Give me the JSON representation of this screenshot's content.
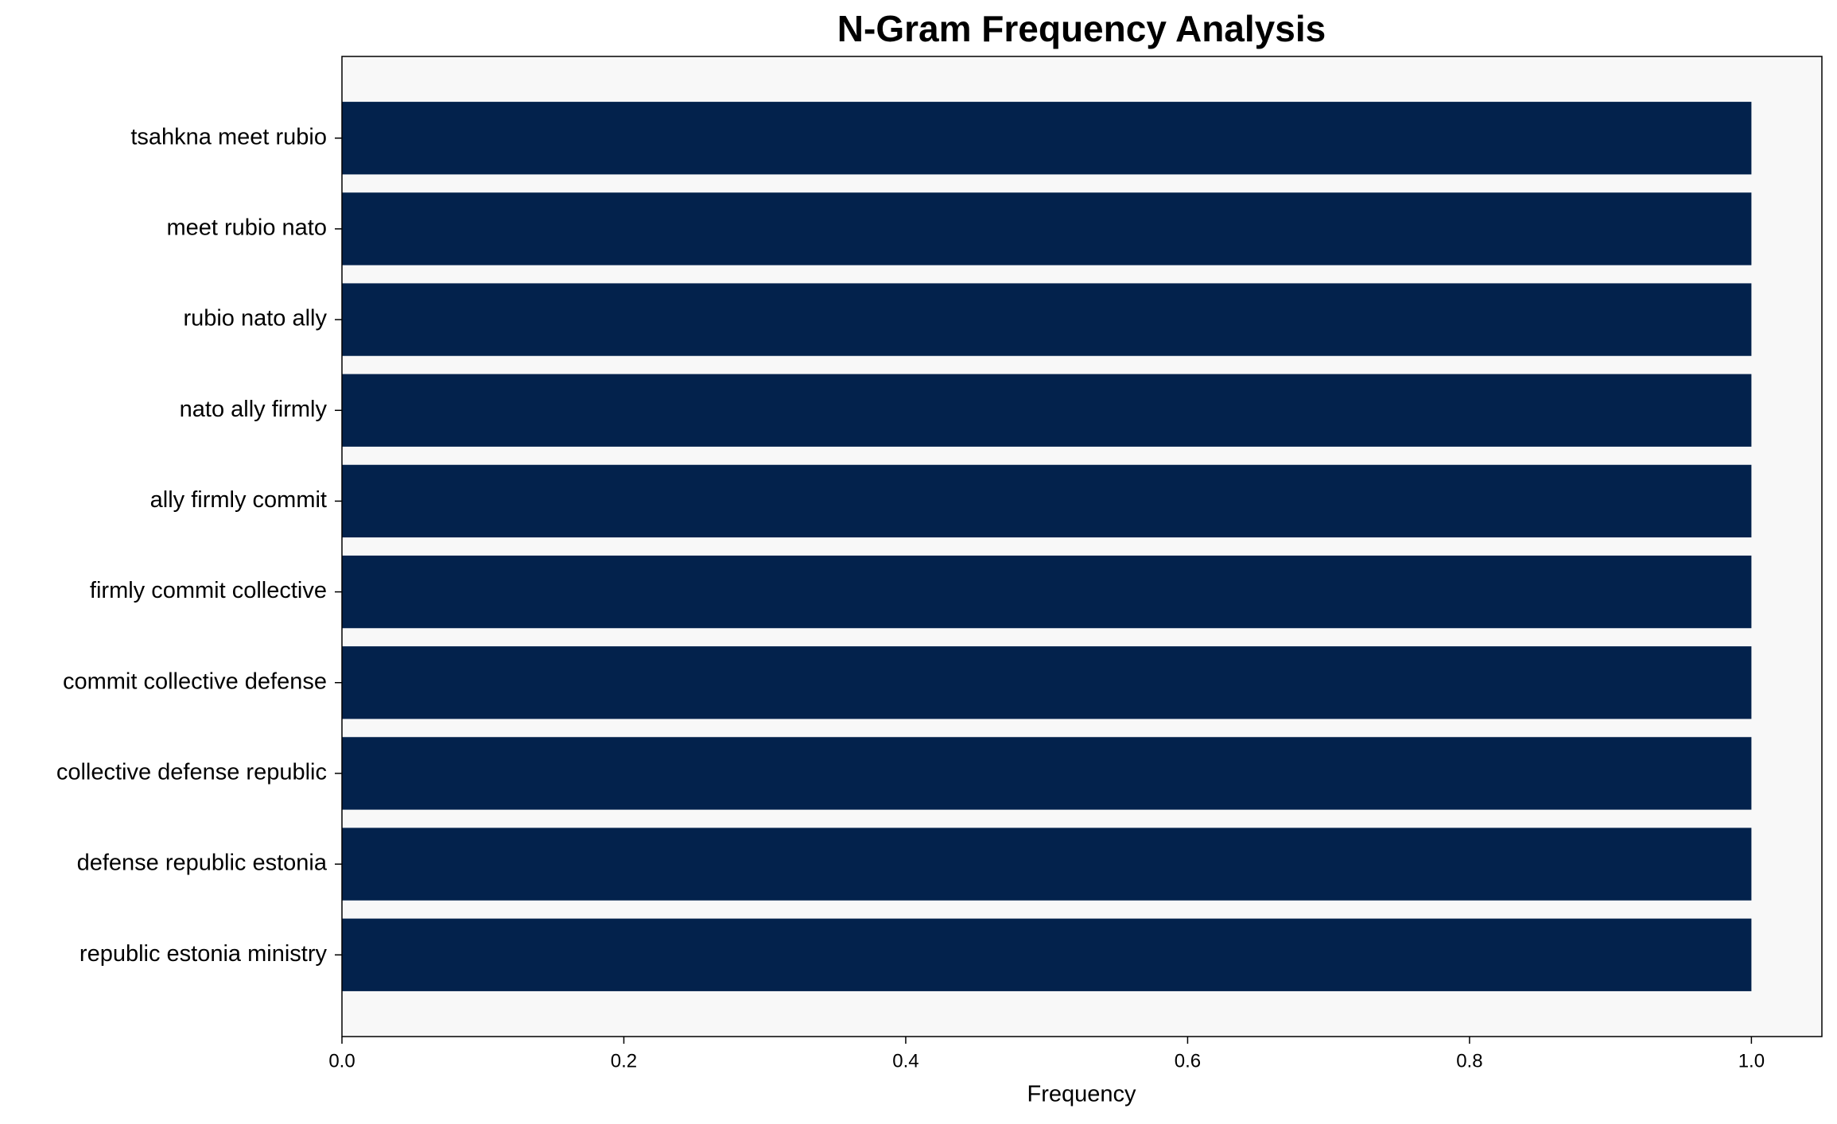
{
  "chart_data": {
    "type": "bar",
    "orientation": "horizontal",
    "title": "N-Gram Frequency Analysis",
    "xlabel": "Frequency",
    "categories": [
      "tsahkna meet rubio",
      "meet rubio nato",
      "rubio nato ally",
      "nato ally firmly",
      "ally firmly commit",
      "firmly commit collective",
      "commit collective defense",
      "collective defense republic",
      "defense republic estonia",
      "republic estonia ministry"
    ],
    "values": [
      1,
      1,
      1,
      1,
      1,
      1,
      1,
      1,
      1,
      1
    ],
    "color": "#03224c",
    "xlim": [
      0,
      1.05
    ],
    "xticks": [
      {
        "value": 0,
        "label": "0.0"
      },
      0.2,
      0.4,
      0.6,
      0.8,
      {
        "value": 1,
        "label": "1.0"
      }
    ],
    "grid": false
  }
}
